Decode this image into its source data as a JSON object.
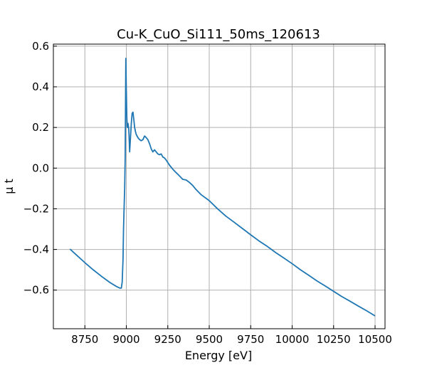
{
  "chart_data": {
    "type": "line",
    "title": "Cu-K_CuO_Si111_50ms_120613",
    "xlabel": "Energy [eV]",
    "ylabel": "μ t",
    "xlim": [
      8560,
      10560
    ],
    "ylim": [
      -0.79,
      0.61
    ],
    "grid": true,
    "x_ticks": [
      8750,
      9000,
      9250,
      9500,
      9750,
      10000,
      10250,
      10500
    ],
    "x_tick_labels": [
      "8750",
      "9000",
      "9250",
      "9500",
      "9750",
      "10000",
      "10250",
      "10500"
    ],
    "y_ticks": [
      -0.6,
      -0.4,
      -0.2,
      0.0,
      0.2,
      0.4,
      0.6
    ],
    "y_tick_labels": [
      "−0.6",
      "−0.4",
      "−0.2",
      "0.0",
      "0.2",
      "0.4",
      "0.6"
    ],
    "series": [
      {
        "color": "#1f77b4",
        "x": [
          8660,
          8700,
          8750,
          8800,
          8850,
          8900,
          8940,
          8960,
          8970,
          8975,
          8980,
          8983,
          8986,
          8990,
          8993,
          8995,
          8997,
          9000,
          9003,
          9006,
          9010,
          9015,
          9020,
          9025,
          9030,
          9035,
          9040,
          9045,
          9050,
          9055,
          9060,
          9070,
          9080,
          9090,
          9100,
          9110,
          9120,
          9130,
          9140,
          9150,
          9160,
          9170,
          9180,
          9190,
          9200,
          9210,
          9220,
          9230,
          9240,
          9260,
          9280,
          9300,
          9320,
          9340,
          9360,
          9380,
          9400,
          9420,
          9450,
          9500,
          9550,
          9600,
          9650,
          9700,
          9750,
          9800,
          9850,
          9900,
          9950,
          10000,
          10050,
          10100,
          10150,
          10200,
          10250,
          10300,
          10350,
          10400,
          10450,
          10500
        ],
        "y": [
          -0.398,
          -0.428,
          -0.465,
          -0.5,
          -0.532,
          -0.562,
          -0.582,
          -0.59,
          -0.59,
          -0.56,
          -0.45,
          -0.3,
          -0.21,
          -0.1,
          0.05,
          0.3,
          0.54,
          0.38,
          0.25,
          0.2,
          0.22,
          0.19,
          0.08,
          0.15,
          0.22,
          0.27,
          0.275,
          0.24,
          0.2,
          0.18,
          0.165,
          0.15,
          0.14,
          0.135,
          0.14,
          0.158,
          0.15,
          0.14,
          0.12,
          0.095,
          0.08,
          0.09,
          0.08,
          0.07,
          0.066,
          0.07,
          0.055,
          0.05,
          0.04,
          0.015,
          -0.005,
          -0.022,
          -0.038,
          -0.055,
          -0.058,
          -0.07,
          -0.085,
          -0.105,
          -0.13,
          -0.16,
          -0.2,
          -0.236,
          -0.266,
          -0.297,
          -0.328,
          -0.358,
          -0.385,
          -0.415,
          -0.442,
          -0.47,
          -0.5,
          -0.527,
          -0.555,
          -0.58,
          -0.606,
          -0.632,
          -0.655,
          -0.679,
          -0.702,
          -0.727
        ]
      }
    ]
  }
}
